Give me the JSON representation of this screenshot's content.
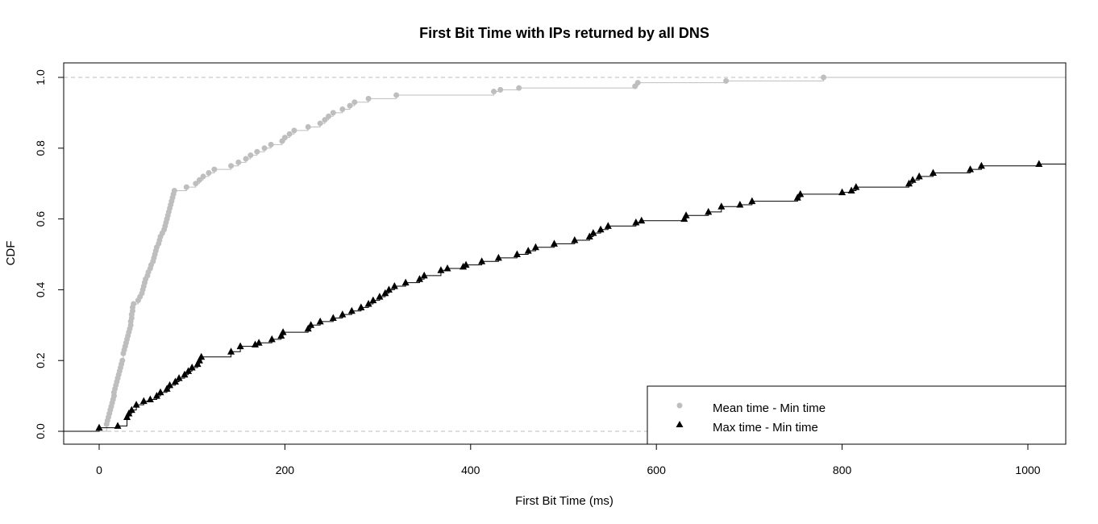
{
  "chart_data": {
    "type": "line",
    "subtype": "ecdf-step",
    "title": "First Bit Time with IPs returned by all DNS",
    "xlabel": "First Bit Time (ms)",
    "ylabel": "CDF",
    "xlim": [
      -40,
      1040
    ],
    "ylim": [
      -0.04,
      1.04
    ],
    "xticks": [
      0,
      200,
      400,
      600,
      800,
      1000
    ],
    "yticks": [
      0.0,
      0.2,
      0.4,
      0.6,
      0.8,
      1.0
    ],
    "xtick_labels": [
      "0",
      "200",
      "400",
      "600",
      "800",
      "1000"
    ],
    "ytick_labels": [
      "0.0",
      "0.2",
      "0.4",
      "0.6",
      "0.8",
      "1.0"
    ],
    "reference_lines_y": [
      0,
      1
    ],
    "legend_position": "bottom-right",
    "series": [
      {
        "name": "Mean time - Min time",
        "color": "#bebebe",
        "marker": "circle",
        "points": [
          [
            8,
            0.02
          ],
          [
            9,
            0.03
          ],
          [
            10,
            0.04
          ],
          [
            11,
            0.05
          ],
          [
            12,
            0.06
          ],
          [
            13,
            0.07
          ],
          [
            14,
            0.08
          ],
          [
            15,
            0.09
          ],
          [
            16,
            0.1
          ],
          [
            16,
            0.11
          ],
          [
            17,
            0.12
          ],
          [
            18,
            0.13
          ],
          [
            19,
            0.14
          ],
          [
            20,
            0.15
          ],
          [
            21,
            0.16
          ],
          [
            22,
            0.17
          ],
          [
            23,
            0.18
          ],
          [
            24,
            0.19
          ],
          [
            25,
            0.2
          ],
          [
            26,
            0.22
          ],
          [
            27,
            0.23
          ],
          [
            28,
            0.24
          ],
          [
            29,
            0.25
          ],
          [
            30,
            0.26
          ],
          [
            31,
            0.27
          ],
          [
            32,
            0.28
          ],
          [
            33,
            0.29
          ],
          [
            34,
            0.3
          ],
          [
            34,
            0.31
          ],
          [
            35,
            0.32
          ],
          [
            35,
            0.33
          ],
          [
            36,
            0.34
          ],
          [
            36,
            0.35
          ],
          [
            37,
            0.36
          ],
          [
            42,
            0.37
          ],
          [
            44,
            0.38
          ],
          [
            46,
            0.39
          ],
          [
            47,
            0.4
          ],
          [
            48,
            0.41
          ],
          [
            49,
            0.42
          ],
          [
            50,
            0.43
          ],
          [
            52,
            0.44
          ],
          [
            53,
            0.45
          ],
          [
            55,
            0.46
          ],
          [
            56,
            0.47
          ],
          [
            58,
            0.48
          ],
          [
            59,
            0.49
          ],
          [
            60,
            0.5
          ],
          [
            61,
            0.51
          ],
          [
            62,
            0.52
          ],
          [
            64,
            0.53
          ],
          [
            65,
            0.54
          ],
          [
            66,
            0.55
          ],
          [
            68,
            0.56
          ],
          [
            70,
            0.57
          ],
          [
            71,
            0.58
          ],
          [
            72,
            0.59
          ],
          [
            73,
            0.6
          ],
          [
            74,
            0.61
          ],
          [
            75,
            0.62
          ],
          [
            76,
            0.63
          ],
          [
            77,
            0.64
          ],
          [
            78,
            0.65
          ],
          [
            79,
            0.66
          ],
          [
            80,
            0.67
          ],
          [
            81,
            0.68
          ],
          [
            94,
            0.69
          ],
          [
            104,
            0.7
          ],
          [
            108,
            0.71
          ],
          [
            112,
            0.72
          ],
          [
            118,
            0.73
          ],
          [
            124,
            0.74
          ],
          [
            142,
            0.75
          ],
          [
            150,
            0.76
          ],
          [
            158,
            0.77
          ],
          [
            163,
            0.78
          ],
          [
            170,
            0.79
          ],
          [
            178,
            0.8
          ],
          [
            185,
            0.81
          ],
          [
            197,
            0.82
          ],
          [
            200,
            0.83
          ],
          [
            205,
            0.84
          ],
          [
            210,
            0.85
          ],
          [
            225,
            0.86
          ],
          [
            238,
            0.87
          ],
          [
            243,
            0.88
          ],
          [
            247,
            0.89
          ],
          [
            252,
            0.9
          ],
          [
            262,
            0.91
          ],
          [
            270,
            0.92
          ],
          [
            275,
            0.93
          ],
          [
            290,
            0.94
          ],
          [
            320,
            0.95
          ],
          [
            425,
            0.96
          ],
          [
            432,
            0.965
          ],
          [
            452,
            0.97
          ],
          [
            577,
            0.975
          ],
          [
            580,
            0.985
          ],
          [
            675,
            0.99
          ],
          [
            780,
            1.0
          ]
        ]
      },
      {
        "name": "Max time - Min time",
        "color": "#000000",
        "marker": "triangle",
        "points": [
          [
            0,
            0.01
          ],
          [
            20,
            0.015
          ],
          [
            30,
            0.04
          ],
          [
            32,
            0.05
          ],
          [
            35,
            0.06
          ],
          [
            40,
            0.075
          ],
          [
            48,
            0.085
          ],
          [
            55,
            0.09
          ],
          [
            62,
            0.1
          ],
          [
            66,
            0.11
          ],
          [
            73,
            0.12
          ],
          [
            76,
            0.13
          ],
          [
            82,
            0.14
          ],
          [
            86,
            0.15
          ],
          [
            92,
            0.16
          ],
          [
            96,
            0.17
          ],
          [
            100,
            0.18
          ],
          [
            106,
            0.19
          ],
          [
            108,
            0.2
          ],
          [
            110,
            0.21
          ],
          [
            142,
            0.225
          ],
          [
            152,
            0.24
          ],
          [
            168,
            0.245
          ],
          [
            172,
            0.25
          ],
          [
            186,
            0.26
          ],
          [
            196,
            0.27
          ],
          [
            198,
            0.28
          ],
          [
            225,
            0.29
          ],
          [
            228,
            0.3
          ],
          [
            238,
            0.31
          ],
          [
            252,
            0.32
          ],
          [
            262,
            0.33
          ],
          [
            272,
            0.34
          ],
          [
            282,
            0.35
          ],
          [
            290,
            0.36
          ],
          [
            295,
            0.37
          ],
          [
            302,
            0.38
          ],
          [
            308,
            0.39
          ],
          [
            312,
            0.4
          ],
          [
            318,
            0.41
          ],
          [
            330,
            0.42
          ],
          [
            345,
            0.43
          ],
          [
            350,
            0.44
          ],
          [
            368,
            0.455
          ],
          [
            375,
            0.46
          ],
          [
            392,
            0.465
          ],
          [
            395,
            0.47
          ],
          [
            412,
            0.48
          ],
          [
            430,
            0.49
          ],
          [
            450,
            0.5
          ],
          [
            462,
            0.51
          ],
          [
            470,
            0.52
          ],
          [
            490,
            0.53
          ],
          [
            512,
            0.54
          ],
          [
            528,
            0.55
          ],
          [
            532,
            0.56
          ],
          [
            540,
            0.57
          ],
          [
            548,
            0.58
          ],
          [
            578,
            0.59
          ],
          [
            584,
            0.595
          ],
          [
            630,
            0.6
          ],
          [
            632,
            0.61
          ],
          [
            656,
            0.62
          ],
          [
            670,
            0.635
          ],
          [
            690,
            0.64
          ],
          [
            703,
            0.65
          ],
          [
            752,
            0.66
          ],
          [
            755,
            0.67
          ],
          [
            800,
            0.675
          ],
          [
            810,
            0.68
          ],
          [
            815,
            0.69
          ],
          [
            872,
            0.7
          ],
          [
            876,
            0.71
          ],
          [
            883,
            0.72
          ],
          [
            898,
            0.73
          ],
          [
            938,
            0.74
          ],
          [
            950,
            0.75
          ],
          [
            1012,
            0.755
          ]
        ]
      }
    ]
  }
}
